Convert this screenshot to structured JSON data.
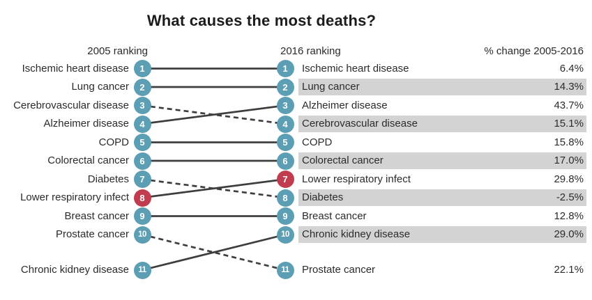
{
  "chart_data": {
    "type": "line",
    "subtype": "slope-bump-ranking-chart",
    "title": "What causes the most deaths?",
    "columns": {
      "left": "2005 ranking",
      "right": "2016 ranking",
      "change": "% change 2005-2016"
    },
    "rank_axis": [
      1,
      2,
      3,
      4,
      5,
      6,
      7,
      8,
      9,
      10,
      11
    ],
    "items": [
      {
        "cause": "Ischemic heart disease",
        "rank_2005": 1,
        "rank_2016": 1,
        "pct_change": "6.4%",
        "line": "solid",
        "highlight": false
      },
      {
        "cause": "Lung cancer",
        "rank_2005": 2,
        "rank_2016": 2,
        "pct_change": "14.3%",
        "line": "solid",
        "highlight": false
      },
      {
        "cause": "Cerebrovascular disease",
        "rank_2005": 3,
        "rank_2016": 4,
        "pct_change": "15.1%",
        "line": "dashed",
        "highlight": false
      },
      {
        "cause": "Alzheimer disease",
        "rank_2005": 4,
        "rank_2016": 3,
        "pct_change": "43.7%",
        "line": "solid",
        "highlight": false
      },
      {
        "cause": "COPD",
        "rank_2005": 5,
        "rank_2016": 5,
        "pct_change": "15.8%",
        "line": "solid",
        "highlight": false
      },
      {
        "cause": "Colorectal cancer",
        "rank_2005": 6,
        "rank_2016": 6,
        "pct_change": "17.0%",
        "line": "solid",
        "highlight": false
      },
      {
        "cause": "Diabetes",
        "rank_2005": 7,
        "rank_2016": 8,
        "pct_change": "-2.5%",
        "line": "dashed",
        "highlight": false
      },
      {
        "cause": "Lower respiratory infect",
        "rank_2005": 8,
        "rank_2016": 7,
        "pct_change": "29.8%",
        "line": "solid",
        "highlight": true
      },
      {
        "cause": "Breast cancer",
        "rank_2005": 9,
        "rank_2016": 9,
        "pct_change": "12.8%",
        "line": "solid",
        "highlight": false
      },
      {
        "cause": "Prostate cancer",
        "rank_2005": 10,
        "rank_2016": 11,
        "pct_change": "22.1%",
        "line": "dashed",
        "highlight": false
      },
      {
        "cause": "Chronic kidney disease",
        "rank_2005": 11,
        "rank_2016": 10,
        "pct_change": "29.0%",
        "line": "solid",
        "highlight": false
      }
    ],
    "banded_2016_ranks": [
      2,
      4,
      6,
      8,
      10
    ]
  },
  "colors": {
    "teal": "#5C9EB4",
    "red": "#C13C4E",
    "line": "#3E3E3E",
    "band": "#D3D3D3",
    "text": "#2B2B2B",
    "title": "#1C1C1C",
    "background": "#FFFFFF"
  }
}
